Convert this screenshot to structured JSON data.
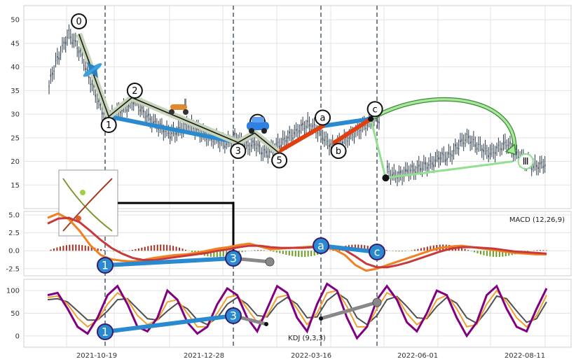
{
  "chart_data": [
    {
      "type": "candlestick",
      "panel": "price",
      "yticks": [
        15,
        20,
        25,
        30,
        35,
        40,
        45,
        50
      ],
      "ylim": [
        10,
        53
      ],
      "xlabels": [
        "2021-10-19",
        "2021-12-28",
        "2022-03-16",
        "2022-06-01",
        "2022-08-11"
      ],
      "close": {
        "x": [
          0,
          4,
          8,
          12,
          16,
          20,
          24,
          28,
          32,
          36,
          40,
          44,
          48,
          52,
          56,
          60,
          64,
          68,
          72,
          76,
          80,
          84,
          88,
          92,
          96,
          100,
          104,
          108,
          112,
          116,
          120,
          124,
          128,
          132,
          136,
          140,
          144,
          148,
          152,
          156,
          160,
          164,
          168,
          172,
          176,
          180,
          184,
          188,
          192,
          196,
          200,
          204,
          208,
          212,
          216,
          220,
          224,
          228,
          232,
          236,
          240,
          244,
          248,
          252,
          256,
          260,
          264,
          268,
          272,
          276,
          280,
          284,
          288,
          292,
          296,
          300
        ],
        "values": [
          36,
          41,
          44,
          47,
          45,
          42,
          38,
          34,
          31,
          29,
          30,
          31,
          32,
          33,
          31,
          29,
          28,
          27,
          26,
          26,
          27,
          28,
          27,
          26,
          25,
          25,
          24,
          24,
          25,
          24,
          23,
          24,
          22,
          22,
          23,
          24,
          25,
          26,
          27,
          28,
          27,
          26,
          24,
          23,
          24,
          25,
          26,
          27,
          28,
          29,
          29,
          18,
          17,
          17,
          18,
          18,
          19,
          19,
          20,
          21,
          21,
          22,
          24,
          25,
          24,
          23,
          22,
          22,
          23,
          24,
          22,
          21,
          20,
          19,
          19,
          20
        ]
      },
      "waves": {
        "labels": [
          "0",
          "1",
          "2",
          "3",
          "4",
          "5",
          "a",
          "b",
          "c",
          "Ⅲ"
        ],
        "points": [
          {
            "label": "0",
            "x": 18,
            "y": 47
          },
          {
            "label": "1",
            "x": 36,
            "y": 29.5
          },
          {
            "label": "2",
            "x": 50,
            "y": 33.5
          },
          {
            "label": "3",
            "x": 114,
            "y": 24
          },
          {
            "label": "4",
            "x": 124,
            "y": 26
          },
          {
            "label": "5",
            "x": 138,
            "y": 22
          },
          {
            "label": "a",
            "x": 165,
            "y": 27.5
          },
          {
            "label": "b",
            "x": 172,
            "y": 24
          },
          {
            "label": "c",
            "x": 194,
            "y": 29
          },
          {
            "label": "Ⅲ",
            "x": 284,
            "y": 20
          }
        ]
      }
    },
    {
      "type": "line",
      "panel": "macd",
      "label": "MACD (12,26,9)",
      "yticks": [
        -2.5,
        0.0,
        2.5,
        5.0
      ],
      "ylim": [
        -3.5,
        5.5
      ],
      "series": [
        {
          "color": "#f08020",
          "values": [
            4.6,
            5.2,
            4.4,
            2.8,
            0.8,
            -0.6,
            -1.2,
            -1.4,
            -1.5,
            -1.3,
            -1.0,
            -0.8,
            -0.6,
            -0.5,
            -0.3,
            0.0,
            0.3,
            0.5,
            0.8,
            1.0,
            0.6,
            0.2,
            0.3,
            0.4,
            0.5,
            0.6,
            0.4,
            0.2,
            -0.6,
            -2.0,
            -2.8,
            -2.5,
            -2.0,
            -1.5,
            -1.0,
            -0.5,
            0.0,
            0.4,
            0.6,
            0.7,
            0.5,
            0.3,
            0.1,
            -0.1,
            -0.3,
            -0.4,
            -0.5,
            -0.5
          ]
        },
        {
          "color": "#c83a3a",
          "values": [
            3.8,
            4.5,
            4.6,
            4.0,
            2.8,
            1.5,
            0.4,
            -0.4,
            -1.0,
            -1.3,
            -1.3,
            -1.1,
            -0.9,
            -0.7,
            -0.5,
            -0.3,
            0.0,
            0.2,
            0.5,
            0.7,
            0.7,
            0.5,
            0.4,
            0.4,
            0.4,
            0.5,
            0.5,
            0.4,
            0.1,
            -0.8,
            -1.8,
            -2.3,
            -2.3,
            -2.0,
            -1.6,
            -1.1,
            -0.6,
            -0.1,
            0.3,
            0.5,
            0.5,
            0.4,
            0.3,
            0.1,
            -0.1,
            -0.2,
            -0.3,
            -0.4
          ]
        }
      ]
    },
    {
      "type": "line",
      "panel": "kdj",
      "label": "KDJ (9,3,3)",
      "yticks": [
        0,
        50,
        100
      ],
      "ylim": [
        -25,
        125
      ],
      "series": [
        {
          "color": "#800080",
          "values": [
            90,
            95,
            60,
            20,
            5,
            40,
            90,
            110,
            70,
            20,
            10,
            40,
            100,
            80,
            30,
            5,
            20,
            70,
            105,
            90,
            40,
            10,
            60,
            110,
            95,
            40,
            10,
            70,
            115,
            100,
            40,
            -5,
            20,
            80,
            110,
            80,
            30,
            10,
            50,
            100,
            90,
            40,
            0,
            30,
            90,
            110,
            60,
            20,
            10,
            60,
            105
          ]
        },
        {
          "color": "#f0a030",
          "values": [
            85,
            88,
            70,
            40,
            20,
            35,
            70,
            95,
            80,
            45,
            25,
            35,
            75,
            80,
            50,
            20,
            20,
            50,
            85,
            90,
            60,
            30,
            45,
            85,
            90,
            60,
            25,
            50,
            95,
            100,
            65,
            20,
            20,
            60,
            95,
            85,
            50,
            25,
            40,
            80,
            90,
            60,
            20,
            25,
            70,
            100,
            75,
            40,
            20,
            45,
            90
          ]
        },
        {
          "color": "#505050",
          "values": [
            80,
            82,
            75,
            55,
            35,
            35,
            55,
            80,
            82,
            60,
            38,
            35,
            55,
            72,
            60,
            35,
            25,
            40,
            70,
            85,
            70,
            45,
            42,
            70,
            85,
            70,
            40,
            42,
            78,
            95,
            80,
            40,
            25,
            45,
            80,
            87,
            65,
            40,
            38,
            65,
            85,
            72,
            40,
            28,
            55,
            88,
            82,
            55,
            30,
            38,
            75
          ]
        }
      ]
    }
  ]
}
